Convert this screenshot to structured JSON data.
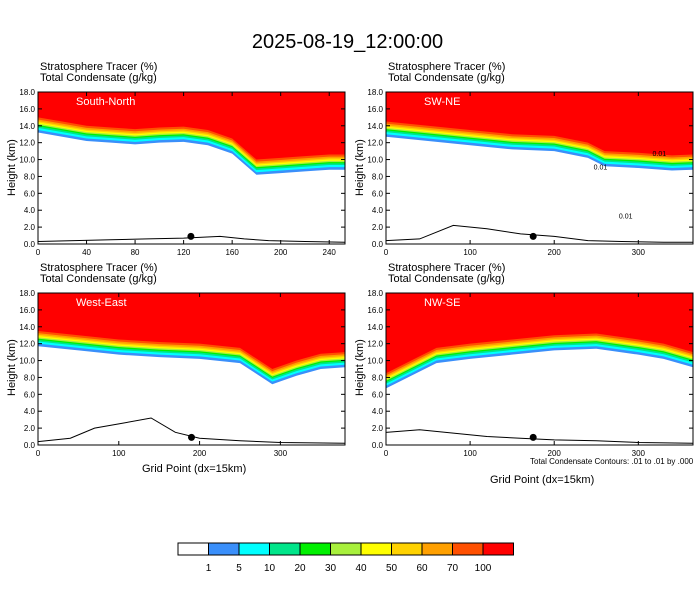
{
  "figure": {
    "title": "2025-08-19_12:00:00",
    "footnote": "Total Condensate Contours: .01 to .01 by .000"
  },
  "chart_data": [
    {
      "type": "heatmap",
      "panel_label": "South-North",
      "header_left": "Stratosphere Tracer   (%)",
      "header_left2": "Total Condensate   (g/kg)",
      "ylabel": "Height (km)",
      "xlabel": "",
      "xlim": [
        0,
        253
      ],
      "ylim": [
        0,
        18
      ],
      "xticks": [
        "0",
        "40",
        "80",
        "120",
        "160",
        "200",
        "240"
      ],
      "yticks": [
        "0.0",
        "2.0",
        "4.0",
        "6.0",
        "8.0",
        "10.0",
        "12.0",
        "14.0",
        "16.0",
        "18.0"
      ],
      "tracer_base_km": [
        [
          0,
          15.0
        ],
        [
          20,
          14.5
        ],
        [
          40,
          14.0
        ],
        [
          60,
          13.8
        ],
        [
          80,
          13.6
        ],
        [
          100,
          13.8
        ],
        [
          120,
          13.9
        ],
        [
          140,
          13.5
        ],
        [
          160,
          12.5
        ],
        [
          180,
          10.0
        ],
        [
          200,
          10.2
        ],
        [
          220,
          10.4
        ],
        [
          240,
          10.6
        ],
        [
          253,
          10.6
        ]
      ],
      "terrain_km": [
        [
          0,
          0.3
        ],
        [
          30,
          0.4
        ],
        [
          60,
          0.5
        ],
        [
          90,
          0.6
        ],
        [
          120,
          0.7
        ],
        [
          150,
          0.9
        ],
        [
          170,
          0.6
        ],
        [
          190,
          0.4
        ],
        [
          220,
          0.3
        ],
        [
          253,
          0.2
        ]
      ],
      "marker_x": 126
    },
    {
      "type": "heatmap",
      "panel_label": "SW-NE",
      "header_left": "Stratosphere Tracer   (%)",
      "header_left2": "Total Condensate   (g/kg)",
      "ylabel": "",
      "xlabel": "",
      "xlim": [
        0,
        365
      ],
      "ylim": [
        0,
        18
      ],
      "xticks": [
        "0",
        "100",
        "200",
        "300"
      ],
      "yticks": [
        "0.0",
        "2.0",
        "4.0",
        "6.0",
        "8.0",
        "10.0",
        "12.0",
        "14.0",
        "16.0",
        "18.0"
      ],
      "tracer_base_km": [
        [
          0,
          14.5
        ],
        [
          50,
          14.0
        ],
        [
          100,
          13.5
        ],
        [
          150,
          13.0
        ],
        [
          200,
          12.8
        ],
        [
          240,
          12.0
        ],
        [
          260,
          11.0
        ],
        [
          300,
          10.8
        ],
        [
          340,
          10.5
        ],
        [
          365,
          10.6
        ]
      ],
      "terrain_km": [
        [
          0,
          0.4
        ],
        [
          40,
          0.6
        ],
        [
          80,
          2.2
        ],
        [
          120,
          1.8
        ],
        [
          160,
          1.2
        ],
        [
          200,
          0.9
        ],
        [
          240,
          0.4
        ],
        [
          280,
          0.3
        ],
        [
          330,
          0.2
        ],
        [
          365,
          0.2
        ]
      ],
      "marker_x": 175,
      "contour_labels": [
        "0.01",
        "0.01",
        "0.01"
      ]
    },
    {
      "type": "heatmap",
      "panel_label": "West-East",
      "header_left": "Stratosphere Tracer   (%)",
      "header_left2": "Total Condensate   (g/kg)",
      "ylabel": "Height (km)",
      "xlabel": "Grid Point (dx=15km)",
      "xlim": [
        0,
        380
      ],
      "ylim": [
        0,
        18
      ],
      "xticks": [
        "0",
        "100",
        "200",
        "300"
      ],
      "yticks": [
        "0.0",
        "2.0",
        "4.0",
        "6.0",
        "8.0",
        "10.0",
        "12.0",
        "14.0",
        "16.0",
        "18.0"
      ],
      "tracer_base_km": [
        [
          0,
          13.5
        ],
        [
          50,
          13.0
        ],
        [
          100,
          12.5
        ],
        [
          150,
          12.2
        ],
        [
          200,
          12.0
        ],
        [
          250,
          11.5
        ],
        [
          290,
          9.0
        ],
        [
          320,
          10.0
        ],
        [
          350,
          10.8
        ],
        [
          380,
          11.0
        ]
      ],
      "terrain_km": [
        [
          0,
          0.4
        ],
        [
          40,
          0.8
        ],
        [
          70,
          2.0
        ],
        [
          100,
          2.5
        ],
        [
          140,
          3.2
        ],
        [
          170,
          1.5
        ],
        [
          200,
          0.8
        ],
        [
          250,
          0.5
        ],
        [
          300,
          0.3
        ],
        [
          380,
          0.2
        ]
      ],
      "marker_x": 190
    },
    {
      "type": "heatmap",
      "panel_label": "NW-SE",
      "header_left": "Stratosphere Tracer   (%)",
      "header_left2": "Total Condensate   (g/kg)",
      "ylabel": "Height (km)",
      "xlabel": "Grid Point (dx=15km)",
      "xlim": [
        0,
        365
      ],
      "ylim": [
        0,
        18
      ],
      "xticks": [
        "0",
        "100",
        "200",
        "300"
      ],
      "yticks": [
        "0.0",
        "2.0",
        "4.0",
        "6.0",
        "8.0",
        "10.0",
        "12.0",
        "14.0",
        "16.0",
        "18.0"
      ],
      "tracer_base_km": [
        [
          0,
          8.5
        ],
        [
          30,
          10.0
        ],
        [
          60,
          11.5
        ],
        [
          100,
          12.0
        ],
        [
          150,
          12.5
        ],
        [
          200,
          13.0
        ],
        [
          250,
          13.2
        ],
        [
          300,
          12.5
        ],
        [
          330,
          12.0
        ],
        [
          365,
          11.0
        ]
      ],
      "terrain_km": [
        [
          0,
          1.5
        ],
        [
          40,
          1.8
        ],
        [
          80,
          1.4
        ],
        [
          120,
          1.0
        ],
        [
          160,
          0.8
        ],
        [
          200,
          0.6
        ],
        [
          250,
          0.5
        ],
        [
          300,
          0.3
        ],
        [
          365,
          0.2
        ]
      ],
      "marker_x": 175
    }
  ],
  "colorbar": {
    "labels": [
      "1",
      "5",
      "10",
      "20",
      "30",
      "40",
      "50",
      "60",
      "70",
      "100"
    ],
    "colors": [
      "#ffffff",
      "#3a8ffa",
      "#00ffff",
      "#00e58a",
      "#00f000",
      "#a8f03c",
      "#ffff00",
      "#ffd200",
      "#ffa000",
      "#ff5000",
      "#ff0000"
    ]
  }
}
